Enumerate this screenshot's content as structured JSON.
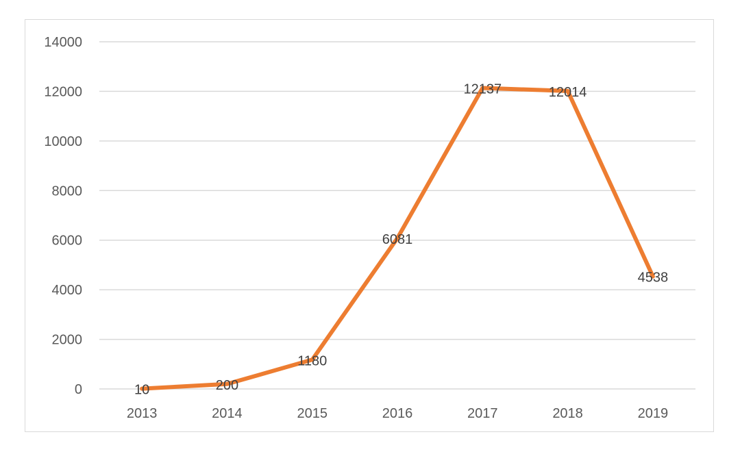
{
  "chart_data": {
    "type": "line",
    "title": "",
    "xlabel": "",
    "ylabel": "",
    "categories": [
      "2013",
      "2014",
      "2015",
      "2016",
      "2017",
      "2018",
      "2019"
    ],
    "series": [
      {
        "values": [
          10,
          200,
          1180,
          6081,
          12137,
          12014,
          4538
        ],
        "color": "#ED7D31"
      }
    ],
    "ylim": [
      0,
      14000
    ],
    "yticks": [
      0,
      2000,
      4000,
      6000,
      8000,
      10000,
      12000,
      14000
    ],
    "grid": true,
    "legend": "none",
    "data_labels": true,
    "gridline_color": "#d9d9d9"
  }
}
